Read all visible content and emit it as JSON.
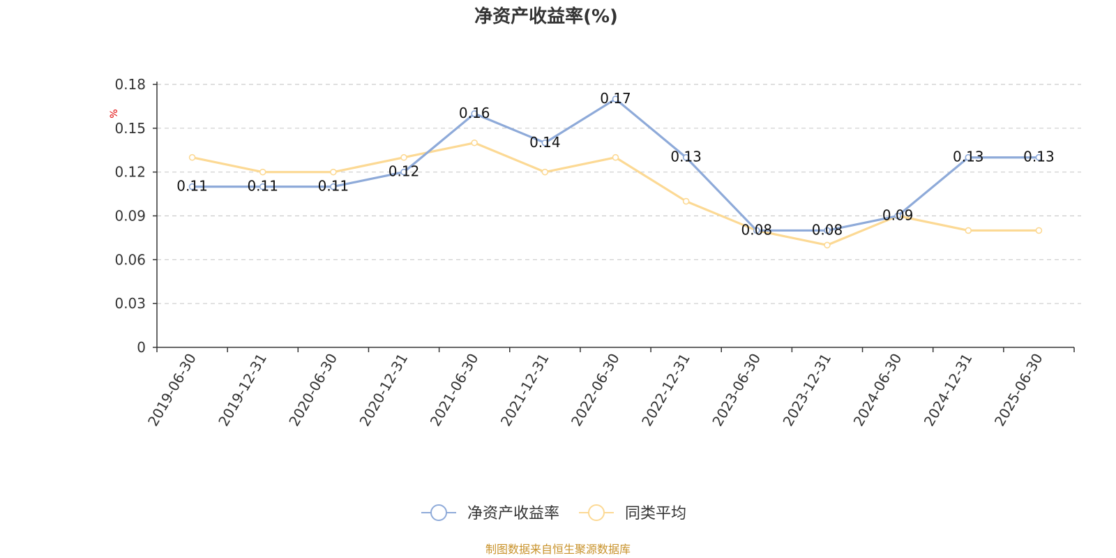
{
  "chart_data": {
    "type": "line",
    "title": "净资产收益率(%)",
    "ylabel": "%",
    "xlabel": "",
    "ylim": [
      0,
      0.18
    ],
    "yticks": [
      "0",
      "0.03",
      "0.06",
      "0.09",
      "0.12",
      "0.15",
      "0.18"
    ],
    "ytick_values": [
      0,
      0.03,
      0.06,
      0.09,
      0.12,
      0.15,
      0.18
    ],
    "grid": true,
    "legend_position": "bottom",
    "categories": [
      "2019-06-30",
      "2019-12-31",
      "2020-06-30",
      "2020-12-31",
      "2021-06-30",
      "2021-12-31",
      "2022-06-30",
      "2022-12-31",
      "2023-06-30",
      "2023-12-31",
      "2024-06-30",
      "2024-12-31",
      "2025-06-30"
    ],
    "series": [
      {
        "name": "净资产收益率",
        "color": "#8eaad9",
        "show_labels": true,
        "values": [
          0.11,
          0.11,
          0.11,
          0.12,
          0.16,
          0.14,
          0.17,
          0.13,
          0.08,
          0.08,
          0.09,
          0.13,
          0.13
        ],
        "labels": [
          "0.11",
          "0.11",
          "0.11",
          "0.12",
          "0.16",
          "0.14",
          "0.17",
          "0.13",
          "0.08",
          "0.08",
          "0.09",
          "0.13",
          "0.13"
        ]
      },
      {
        "name": "同类平均",
        "color": "#fcd994",
        "show_labels": false,
        "values": [
          0.13,
          0.12,
          0.12,
          0.13,
          0.14,
          0.12,
          0.13,
          0.1,
          0.08,
          0.07,
          0.09,
          0.08,
          0.08
        ]
      }
    ]
  },
  "footer": {
    "source": "制图数据来自恒生聚源数据库"
  }
}
